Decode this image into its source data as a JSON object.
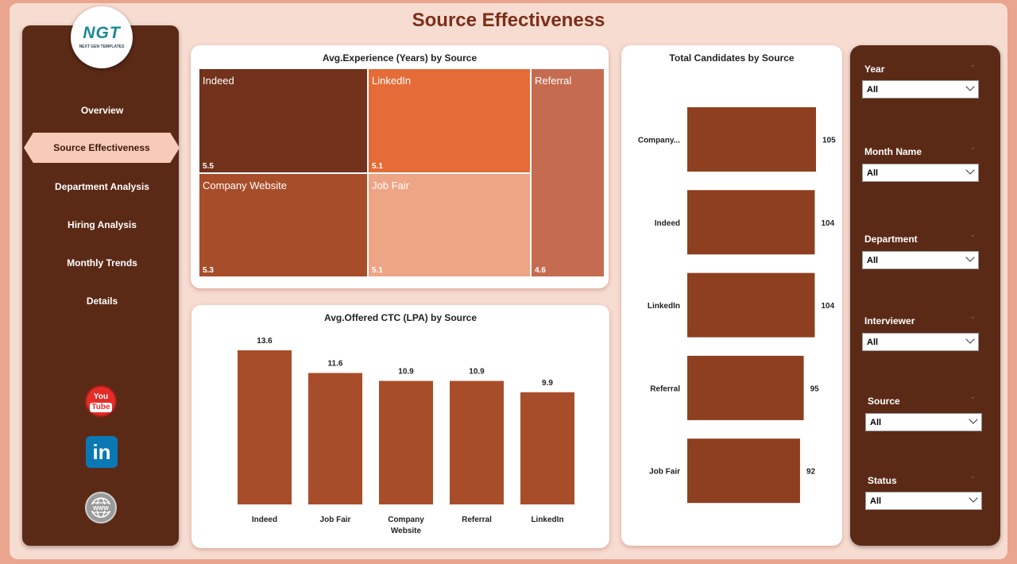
{
  "page_title": "Source Effectiveness",
  "logo": {
    "text": "NGT",
    "subtext": "NEXT GEN TEMPLATES"
  },
  "nav": {
    "items": [
      "Overview",
      "Source Effectiveness",
      "Department Analysis",
      "Hiring Analysis",
      "Monthly Trends",
      "Details"
    ],
    "active": "Source Effectiveness"
  },
  "social": {
    "youtube_top": "You",
    "youtube_bottom": "Tube",
    "linkedin": "in"
  },
  "colors": {
    "accent": "#a84d2a",
    "sidebar": "#5b2a17",
    "background": "#f7dcd2"
  },
  "treemap": {
    "title": "Avg.Experience (Years) by Source",
    "tiles": [
      {
        "label": "Indeed",
        "value": "5.5",
        "color": "#72321c"
      },
      {
        "label": "LinkedIn",
        "value": "5.1",
        "color": "#e56b38"
      },
      {
        "label": "Referral",
        "value": "4.6",
        "color": "#c56c50"
      },
      {
        "label": "Company Website",
        "value": "5.3",
        "color": "#a84d2a"
      },
      {
        "label": "Job Fair",
        "value": "5.1",
        "color": "#eea585"
      }
    ]
  },
  "ctc_chart": {
    "title": "Avg.Offered CTC (LPA) by Source",
    "labels": [
      "Indeed",
      "Job Fair",
      "Company Website",
      "Referral",
      "LinkedIn"
    ],
    "values": [
      "13.6",
      "11.6",
      "10.9",
      "10.9",
      "9.9"
    ]
  },
  "candidates_chart": {
    "title": "Total Candidates by Source",
    "labels": [
      "Company...",
      "Indeed",
      "LinkedIn",
      "Referral",
      "Job Fair"
    ],
    "values": [
      "105",
      "104",
      "104",
      "95",
      "92"
    ]
  },
  "chart_data": [
    {
      "type": "bar",
      "title": "Avg.Offered CTC (LPA) by Source",
      "categories": [
        "Indeed",
        "Job Fair",
        "Company Website",
        "Referral",
        "LinkedIn"
      ],
      "values": [
        13.6,
        11.6,
        10.9,
        10.9,
        9.9
      ],
      "orientation": "vertical",
      "data_labels": true
    },
    {
      "type": "bar",
      "title": "Total Candidates by Source",
      "categories": [
        "Company...",
        "Indeed",
        "LinkedIn",
        "Referral",
        "Job Fair"
      ],
      "values": [
        105,
        104,
        104,
        95,
        92
      ],
      "orientation": "horizontal",
      "data_labels": true
    },
    {
      "type": "treemap",
      "title": "Avg.Experience (Years) by Source",
      "categories": [
        "Indeed",
        "LinkedIn",
        "Referral",
        "Company Website",
        "Job Fair"
      ],
      "values": [
        5.5,
        5.1,
        4.6,
        5.3,
        5.1
      ]
    }
  ],
  "filters": [
    {
      "label": "Year",
      "value": "All"
    },
    {
      "label": "Month Name",
      "value": "All"
    },
    {
      "label": "Department",
      "value": "All"
    },
    {
      "label": "Interviewer",
      "value": "All"
    },
    {
      "label": "Source",
      "value": "All"
    },
    {
      "label": "Status",
      "value": "All"
    }
  ]
}
